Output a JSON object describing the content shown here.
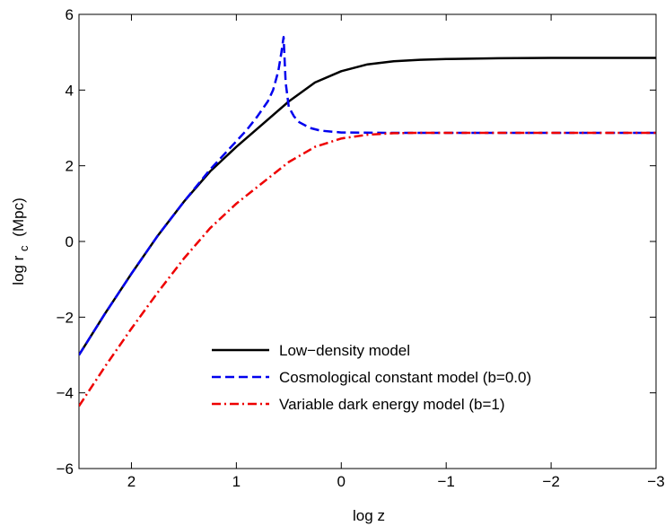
{
  "chart_data": {
    "type": "line",
    "xlabel": "log z",
    "ylabel_main": "log r",
    "ylabel_sub": "c",
    "ylabel_unit": "(Mpc)",
    "xlim": [
      2.5,
      -3
    ],
    "ylim": [
      -6,
      6
    ],
    "x_reversed": true,
    "x_ticks": [
      2,
      1,
      0,
      -1,
      -2,
      -3
    ],
    "x_tick_labels": [
      "2",
      "1",
      "0",
      "−1",
      "−2",
      "−3"
    ],
    "y_ticks": [
      -6,
      -4,
      -2,
      0,
      2,
      4,
      6
    ],
    "y_tick_labels": [
      "−6",
      "−4",
      "−2",
      "0",
      "2",
      "4",
      "6"
    ],
    "grid": false,
    "legend_position": "bottom-right",
    "series": [
      {
        "name": "Low−density model",
        "color": "#000000",
        "style": "solid",
        "x": [
          2.5,
          2.25,
          2.0,
          1.75,
          1.5,
          1.25,
          1.0,
          0.75,
          0.5,
          0.25,
          0.0,
          -0.25,
          -0.5,
          -0.75,
          -1.0,
          -1.5,
          -2.0,
          -2.5,
          -3.0
        ],
        "y": [
          -3.0,
          -1.9,
          -0.85,
          0.15,
          1.05,
          1.85,
          2.5,
          3.1,
          3.7,
          4.2,
          4.5,
          4.68,
          4.76,
          4.8,
          4.82,
          4.84,
          4.85,
          4.85,
          4.85
        ]
      },
      {
        "name": "Cosmological constant model (b=0.0)",
        "color": "#0000ee",
        "style": "dashed",
        "x": [
          2.5,
          2.25,
          2.0,
          1.75,
          1.5,
          1.25,
          1.0,
          0.9,
          0.8,
          0.7,
          0.65,
          0.6,
          0.57,
          0.55,
          0.53,
          0.5,
          0.45,
          0.4,
          0.3,
          0.2,
          0.0,
          -0.5,
          -1.0,
          -2.0,
          -3.0
        ],
        "y": [
          -3.0,
          -1.9,
          -0.85,
          0.15,
          1.05,
          1.9,
          2.65,
          2.95,
          3.3,
          3.7,
          4.0,
          4.5,
          5.0,
          5.4,
          4.2,
          3.55,
          3.3,
          3.15,
          3.0,
          2.93,
          2.88,
          2.87,
          2.87,
          2.87,
          2.87
        ]
      },
      {
        "name": "Variable dark energy model (b=1)",
        "color": "#ee0000",
        "style": "dashdot",
        "x": [
          2.5,
          2.25,
          2.0,
          1.75,
          1.5,
          1.25,
          1.0,
          0.75,
          0.5,
          0.25,
          0.0,
          -0.25,
          -0.5,
          -0.75,
          -1.0,
          -1.5,
          -2.0,
          -2.5,
          -3.0
        ],
        "y": [
          -4.35,
          -3.3,
          -2.3,
          -1.35,
          -0.45,
          0.35,
          1.0,
          1.55,
          2.1,
          2.5,
          2.72,
          2.82,
          2.86,
          2.87,
          2.87,
          2.87,
          2.87,
          2.87,
          2.87
        ]
      }
    ]
  }
}
